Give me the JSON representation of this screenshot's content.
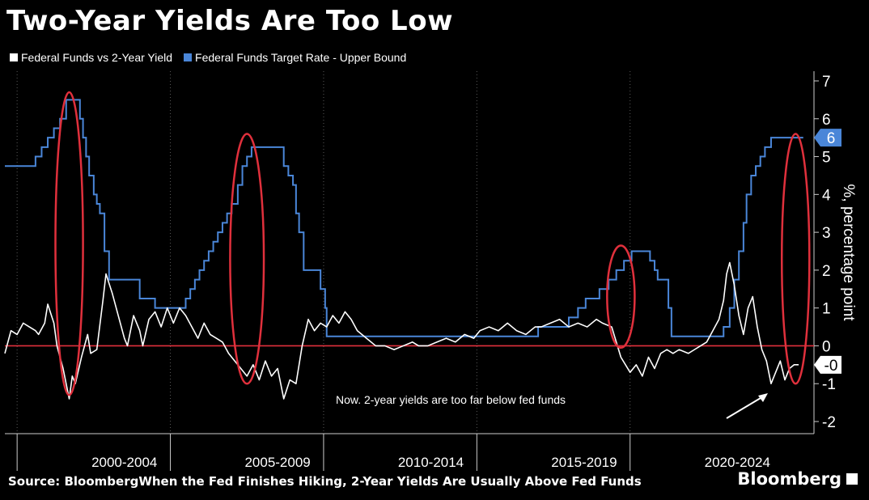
{
  "title": "Two-Year Yields Are Too Low",
  "footer": {
    "source": "Source: BloombergWhen the Fed Finishes Hiking, 2-Year Yields Are Usually Above Fed Funds",
    "brand": "Bloomberg"
  },
  "colors": {
    "background": "#000000",
    "spread": "#ffffff",
    "fed_funds": "#4a86d8",
    "zero_line": "#e0303c",
    "highlight": "#e0303c"
  },
  "chart_data": {
    "type": "line",
    "ylabel": "%, percentage point",
    "ylim": [
      -2.3,
      7.2
    ],
    "xlim": [
      1998.5,
      2024.9
    ],
    "y_ticks": [
      -2,
      -1,
      0,
      1,
      2,
      3,
      4,
      5,
      6,
      7
    ],
    "x_period_labels": [
      {
        "label": "2000-2004",
        "center": 2002.4
      },
      {
        "label": "2005-2009",
        "center": 2007.4
      },
      {
        "label": "2010-2014",
        "center": 2012.4
      },
      {
        "label": "2015-2019",
        "center": 2017.4
      },
      {
        "label": "2020-2024",
        "center": 2022.4
      }
    ],
    "x_ticks": [
      1998.9,
      2003.9,
      2008.9,
      2013.9,
      2018.9
    ],
    "last_value_labels": [
      {
        "series": "Federal Funds Target Rate - Upper Bound",
        "text": "6",
        "value": 5.5
      },
      {
        "series": "Federal Funds vs 2-Year Yield",
        "text": "-0",
        "value": -0.5
      }
    ],
    "annotation": "Now. 2-year yields are too far below fed funds",
    "series": [
      {
        "name": "Federal Funds vs 2-Year Yield",
        "x": [
          1998.5,
          1998.7,
          1998.9,
          1999.1,
          1999.3,
          1999.5,
          1999.6,
          1999.8,
          1999.9,
          2000.1,
          2000.2,
          2000.4,
          2000.6,
          2000.7,
          2000.8,
          2001.0,
          2001.2,
          2001.3,
          2001.5,
          2001.7,
          2001.8,
          2002.0,
          2002.2,
          2002.4,
          2002.5,
          2002.7,
          2002.9,
          2003.0,
          2003.2,
          2003.4,
          2003.6,
          2003.8,
          2004.0,
          2004.2,
          2004.4,
          2004.6,
          2004.8,
          2005.0,
          2005.2,
          2005.4,
          2005.6,
          2005.8,
          2006.0,
          2006.2,
          2006.4,
          2006.6,
          2006.8,
          2007.0,
          2007.2,
          2007.4,
          2007.6,
          2007.8,
          2008.0,
          2008.2,
          2008.4,
          2008.6,
          2008.8,
          2009.0,
          2009.2,
          2009.4,
          2009.6,
          2009.8,
          2010.0,
          2010.3,
          2010.6,
          2010.9,
          2011.2,
          2011.5,
          2011.8,
          2012.0,
          2012.3,
          2012.6,
          2012.9,
          2013.2,
          2013.5,
          2013.8,
          2014.0,
          2014.3,
          2014.6,
          2014.9,
          2015.2,
          2015.5,
          2015.8,
          2016.0,
          2016.3,
          2016.6,
          2016.9,
          2017.2,
          2017.5,
          2017.8,
          2018.0,
          2018.3,
          2018.6,
          2018.9,
          2019.1,
          2019.3,
          2019.5,
          2019.7,
          2019.9,
          2020.1,
          2020.3,
          2020.5,
          2020.8,
          2021.0,
          2021.2,
          2021.4,
          2021.6,
          2021.8,
          2021.95,
          2022.05,
          2022.15,
          2022.3,
          2022.45,
          2022.6,
          2022.75,
          2022.9,
          2023.05,
          2023.2,
          2023.35,
          2023.5,
          2023.65,
          2023.8,
          2023.95,
          2024.1,
          2024.25,
          2024.4
        ],
        "values": [
          -0.2,
          0.4,
          0.3,
          0.6,
          0.5,
          0.4,
          0.3,
          0.6,
          1.1,
          0.6,
          0.0,
          -0.6,
          -1.4,
          -0.8,
          -1.0,
          -0.3,
          0.3,
          -0.2,
          -0.1,
          1.2,
          1.9,
          1.4,
          0.8,
          0.2,
          0.0,
          0.8,
          0.4,
          0.0,
          0.7,
          0.9,
          0.5,
          1.0,
          0.6,
          1.0,
          0.8,
          0.5,
          0.2,
          0.6,
          0.3,
          0.2,
          0.1,
          -0.2,
          -0.4,
          -0.6,
          -0.8,
          -0.5,
          -0.9,
          -0.4,
          -0.8,
          -0.6,
          -1.4,
          -0.9,
          -1.0,
          0.0,
          0.7,
          0.4,
          0.6,
          0.5,
          0.8,
          0.6,
          0.9,
          0.7,
          0.4,
          0.2,
          0.0,
          0.0,
          -0.1,
          0.0,
          0.1,
          0.0,
          0.0,
          0.1,
          0.2,
          0.1,
          0.3,
          0.2,
          0.4,
          0.5,
          0.4,
          0.6,
          0.4,
          0.3,
          0.5,
          0.5,
          0.6,
          0.7,
          0.5,
          0.6,
          0.5,
          0.7,
          0.6,
          0.5,
          -0.3,
          -0.7,
          -0.5,
          -0.8,
          -0.3,
          -0.6,
          -0.2,
          -0.1,
          -0.2,
          -0.1,
          -0.2,
          -0.1,
          0.0,
          0.1,
          0.4,
          0.7,
          1.2,
          1.9,
          2.2,
          1.6,
          0.8,
          0.3,
          1.0,
          1.3,
          0.5,
          -0.1,
          -0.4,
          -1.0,
          -0.7,
          -0.4,
          -0.9,
          -0.6,
          -0.5,
          -0.5
        ]
      },
      {
        "name": "Federal Funds Target Rate - Upper Bound",
        "x": [
          1998.5,
          1999.5,
          1999.7,
          1999.9,
          2000.1,
          2000.3,
          2000.5,
          2000.8,
          2000.95,
          2001.05,
          2001.15,
          2001.25,
          2001.4,
          2001.5,
          2001.6,
          2001.75,
          2001.9,
          2002.9,
          2003.4,
          2004.4,
          2004.55,
          2004.7,
          2004.85,
          2005.0,
          2005.15,
          2005.3,
          2005.45,
          2005.6,
          2005.75,
          2005.9,
          2006.1,
          2006.25,
          2006.4,
          2006.55,
          2007.6,
          2007.75,
          2007.9,
          2008.0,
          2008.1,
          2008.25,
          2008.8,
          2008.95,
          2009.0,
          2015.9,
          2016.9,
          2017.2,
          2017.45,
          2017.9,
          2018.2,
          2018.45,
          2018.7,
          2018.95,
          2019.55,
          2019.7,
          2019.8,
          2020.15,
          2020.25,
          2021.95,
          2022.15,
          2022.3,
          2022.45,
          2022.6,
          2022.7,
          2022.85,
          2023.0,
          2023.15,
          2023.3,
          2023.5,
          2024.4
        ],
        "values": [
          4.75,
          5.0,
          5.25,
          5.5,
          5.75,
          6.0,
          6.5,
          6.5,
          6.0,
          5.5,
          5.0,
          4.5,
          4.0,
          3.75,
          3.5,
          2.5,
          1.75,
          1.25,
          1.0,
          1.25,
          1.5,
          1.75,
          2.0,
          2.25,
          2.5,
          2.75,
          3.0,
          3.25,
          3.5,
          3.75,
          4.25,
          4.75,
          5.0,
          5.25,
          4.75,
          4.5,
          4.25,
          3.5,
          3.0,
          2.0,
          1.5,
          1.0,
          0.25,
          0.5,
          0.75,
          1.0,
          1.25,
          1.5,
          1.75,
          2.0,
          2.25,
          2.5,
          2.25,
          2.0,
          1.75,
          1.0,
          0.25,
          0.5,
          1.0,
          1.75,
          2.5,
          3.25,
          4.0,
          4.5,
          4.75,
          5.0,
          5.25,
          5.5,
          5.5
        ]
      }
    ],
    "highlights": [
      {
        "cx": 2000.6,
        "cy": 2.7,
        "rx": 0.45,
        "ry": 4.0
      },
      {
        "cx": 2006.4,
        "cy": 2.3,
        "rx": 0.55,
        "ry": 3.3
      },
      {
        "cx": 2018.6,
        "cy": 1.3,
        "rx": 0.45,
        "ry": 1.35
      },
      {
        "cx": 2024.3,
        "cy": 2.3,
        "rx": 0.45,
        "ry": 3.3
      }
    ]
  }
}
